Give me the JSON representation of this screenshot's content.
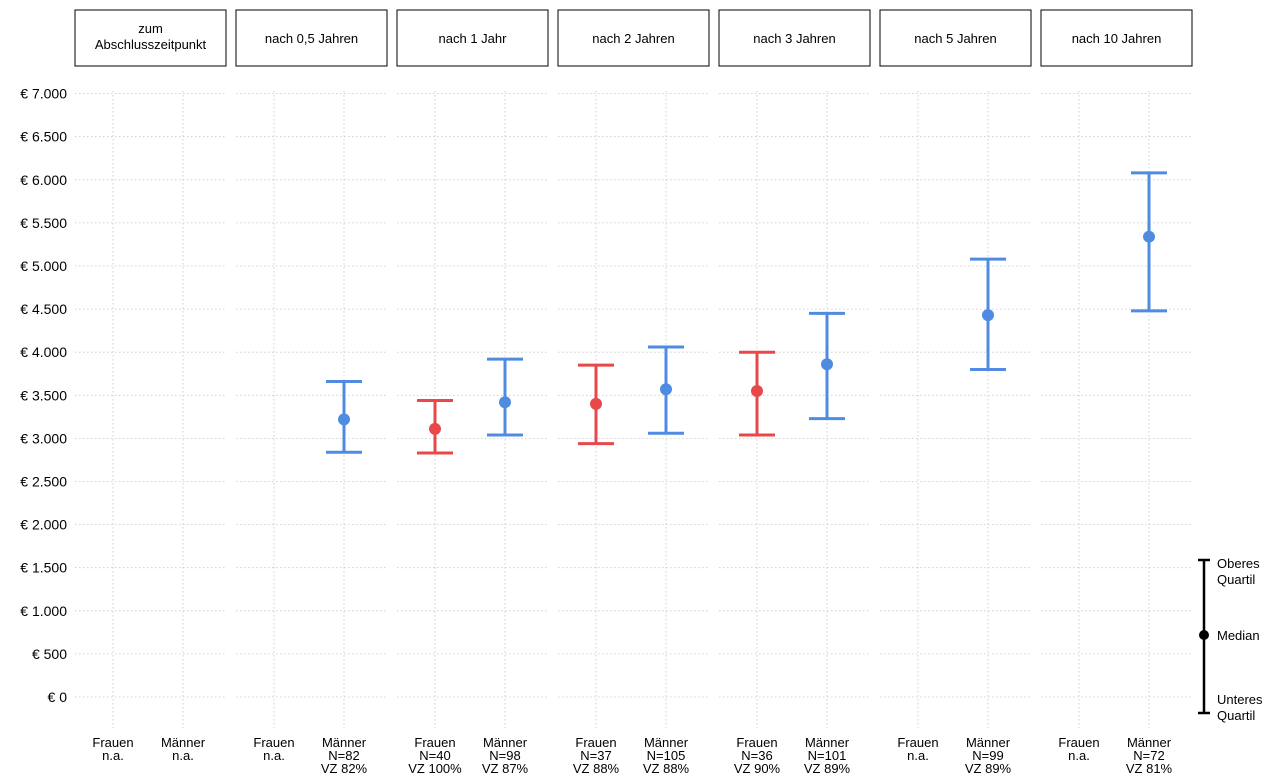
{
  "chart_data": {
    "type": "errorbar",
    "y_tick_labels": [
      "€ 0",
      "€ 500",
      "€ 1.000",
      "€ 1.500",
      "€ 2.000",
      "€ 2.500",
      "€ 3.000",
      "€ 3.500",
      "€ 4.000",
      "€ 4.500",
      "€ 5.000",
      "€ 5.500",
      "€ 6.000",
      "€ 6.500",
      "€ 7.000"
    ],
    "y_ticks": [
      0,
      500,
      1000,
      1500,
      2000,
      2500,
      3000,
      3500,
      4000,
      4500,
      5000,
      5500,
      6000,
      6500,
      7000
    ],
    "ylim": [
      -250,
      7180
    ],
    "grid": true,
    "colors": {
      "Frauen": "#e8484a",
      "Männer": "#4f8be0"
    },
    "legend": {
      "position": "right-bottom",
      "upper": "Oberes Quartil",
      "median": "Median",
      "lower": "Unteres Quartil"
    },
    "panels": [
      {
        "title": "zum Abschlusszeitpunkt",
        "groups": [
          {
            "name": "Frauen",
            "label_lines": [
              "Frauen",
              "n.a."
            ],
            "q1": null,
            "median": null,
            "q3": null
          },
          {
            "name": "Männer",
            "label_lines": [
              "Männer",
              "n.a."
            ],
            "q1": null,
            "median": null,
            "q3": null
          }
        ]
      },
      {
        "title": "nach 0,5 Jahren",
        "groups": [
          {
            "name": "Frauen",
            "label_lines": [
              "Frauen",
              "n.a."
            ],
            "q1": null,
            "median": null,
            "q3": null
          },
          {
            "name": "Männer",
            "label_lines": [
              "Männer",
              "N=82",
              "VZ 82%"
            ],
            "q1": 2840,
            "median": 3220,
            "q3": 3660
          }
        ]
      },
      {
        "title": "nach 1 Jahr",
        "groups": [
          {
            "name": "Frauen",
            "label_lines": [
              "Frauen",
              "N=40",
              "VZ 100%"
            ],
            "q1": 2830,
            "median": 3110,
            "q3": 3440
          },
          {
            "name": "Männer",
            "label_lines": [
              "Männer",
              "N=98",
              "VZ 87%"
            ],
            "q1": 3040,
            "median": 3420,
            "q3": 3920
          }
        ]
      },
      {
        "title": "nach 2 Jahren",
        "groups": [
          {
            "name": "Frauen",
            "label_lines": [
              "Frauen",
              "N=37",
              "VZ 88%"
            ],
            "q1": 2940,
            "median": 3400,
            "q3": 3850
          },
          {
            "name": "Männer",
            "label_lines": [
              "Männer",
              "N=105",
              "VZ 88%"
            ],
            "q1": 3060,
            "median": 3570,
            "q3": 4060
          }
        ]
      },
      {
        "title": "nach 3 Jahren",
        "groups": [
          {
            "name": "Frauen",
            "label_lines": [
              "Frauen",
              "N=36",
              "VZ 90%"
            ],
            "q1": 3040,
            "median": 3550,
            "q3": 4000
          },
          {
            "name": "Männer",
            "label_lines": [
              "Männer",
              "N=101",
              "VZ 89%"
            ],
            "q1": 3230,
            "median": 3860,
            "q3": 4450
          }
        ]
      },
      {
        "title": "nach 5 Jahren",
        "groups": [
          {
            "name": "Frauen",
            "label_lines": [
              "Frauen",
              "n.a."
            ],
            "q1": null,
            "median": null,
            "q3": null
          },
          {
            "name": "Männer",
            "label_lines": [
              "Männer",
              "N=99",
              "VZ 89%"
            ],
            "q1": 3800,
            "median": 4430,
            "q3": 5080
          }
        ]
      },
      {
        "title": "nach 10 Jahren",
        "groups": [
          {
            "name": "Frauen",
            "label_lines": [
              "Frauen",
              "n.a."
            ],
            "q1": null,
            "median": null,
            "q3": null
          },
          {
            "name": "Männer",
            "label_lines": [
              "Männer",
              "N=72",
              "VZ 81%"
            ],
            "q1": 4480,
            "median": 5340,
            "q3": 6080
          }
        ]
      }
    ]
  }
}
